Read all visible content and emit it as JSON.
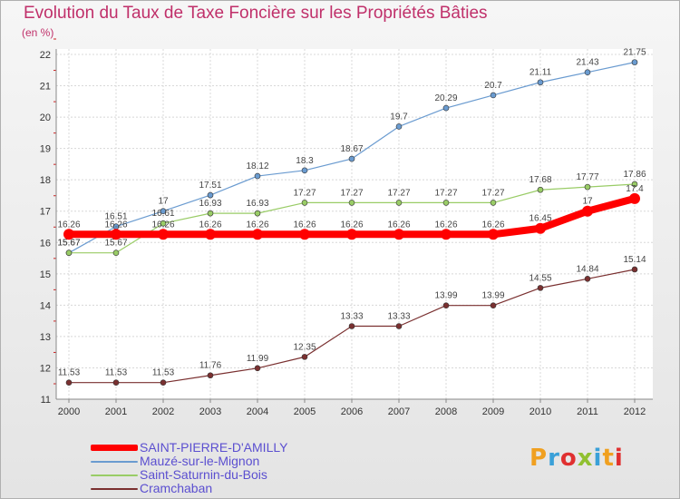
{
  "header": {
    "title": "Evolution du Taux de Taxe Foncière sur les Propriétés Bâties",
    "unit": "(en %)"
  },
  "logo": {
    "text": "Proxiti"
  },
  "chart_data": {
    "type": "line",
    "title": "Evolution du Taux de Taxe Foncière sur les Propriétés Bâties",
    "ylabel": "(en %)",
    "xlabel": "",
    "x": [
      "2000",
      "2001",
      "2002",
      "2003",
      "2004",
      "2005",
      "2006",
      "2007",
      "2008",
      "2009",
      "2010",
      "2011",
      "2012"
    ],
    "ylim": [
      11,
      22
    ],
    "yticks": [
      "11",
      "12",
      "13",
      "14",
      "15",
      "16",
      "17",
      "18",
      "19",
      "20",
      "21",
      "22"
    ],
    "grid": true,
    "legend_position": "bottom-left",
    "series": [
      {
        "name": "SAINT-PIERRE-D'AMILLY",
        "color": "#ff0000",
        "width": 8,
        "marker": 6,
        "values": [
          16.26,
          16.26,
          16.26,
          16.26,
          16.26,
          16.26,
          16.26,
          16.26,
          16.26,
          16.26,
          16.45,
          17,
          17.4
        ],
        "labels": [
          "16.26",
          "16.26",
          "16.26",
          "16.26",
          "16.26",
          "16.26",
          "16.26",
          "16.26",
          "16.26",
          "16.26",
          "16.45",
          "17",
          "17.4"
        ]
      },
      {
        "name": "Mauzé-sur-le-Mignon",
        "color": "#6a9bd0",
        "width": 1.2,
        "marker": 3,
        "values": [
          15.67,
          16.51,
          17,
          17.51,
          18.12,
          18.3,
          18.67,
          19.7,
          20.29,
          20.7,
          21.11,
          21.43,
          21.75
        ],
        "labels": [
          "15.67",
          "16.51",
          "17",
          "17.51",
          "18.12",
          "18.3",
          "18.67",
          "19.7",
          "20.29",
          "20.7",
          "21.11",
          "21.43",
          "21.75"
        ]
      },
      {
        "name": "Saint-Saturnin-du-Bois",
        "color": "#99cc66",
        "width": 1.2,
        "marker": 3,
        "values": [
          15.67,
          15.67,
          16.61,
          16.93,
          16.93,
          17.27,
          17.27,
          17.27,
          17.27,
          17.27,
          17.68,
          17.77,
          17.86
        ],
        "labels": [
          "15.67",
          "15.67",
          "16.61",
          "16.93",
          "16.93",
          "17.27",
          "17.27",
          "17.27",
          "17.27",
          "17.27",
          "17.68",
          "17.77",
          "17.86"
        ]
      },
      {
        "name": "Cramchaban",
        "color": "#7a3030",
        "width": 1.2,
        "marker": 3,
        "values": [
          11.53,
          11.53,
          11.53,
          11.76,
          11.99,
          12.35,
          13.33,
          13.33,
          13.99,
          13.99,
          14.55,
          14.84,
          15.14
        ],
        "labels": [
          "11.53",
          "11.53",
          "11.53",
          "11.76",
          "11.99",
          "12.35",
          "13.33",
          "13.33",
          "13.99",
          "13.99",
          "14.55",
          "14.84",
          "15.14"
        ]
      }
    ]
  }
}
